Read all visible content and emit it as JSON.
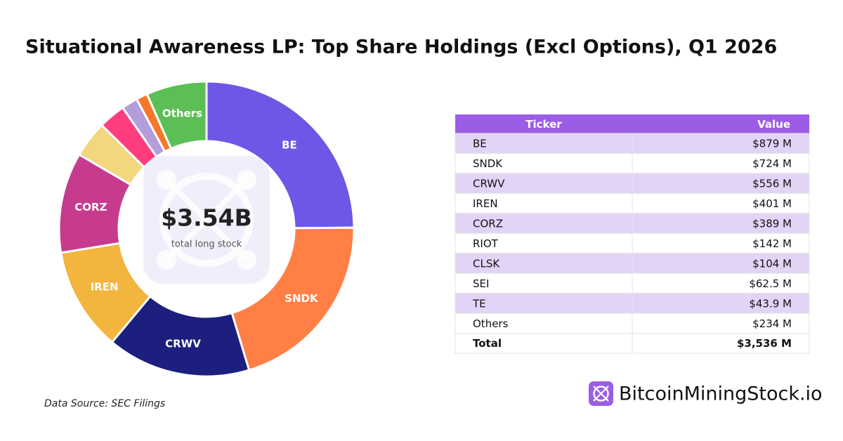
{
  "chart_data": {
    "type": "pie",
    "donut": true,
    "title": "Situational Awareness LP: Top Share Holdings (Excl Options), Q1 2026",
    "categories": [
      "BE",
      "SNDK",
      "CRWV",
      "IREN",
      "CORZ",
      "RIOT",
      "CLSK",
      "SEI",
      "TE",
      "Others"
    ],
    "values": [
      879,
      724,
      556,
      401,
      389,
      142,
      104,
      62.5,
      43.9,
      234
    ],
    "value_labels": [
      "$879 M",
      "$724 M",
      "$556 M",
      "$401 M",
      "$389 M",
      "$142 M",
      "$104 M",
      "$62.5 M",
      "$43.9 M",
      "$234 M"
    ],
    "colors": [
      "#6c57e6",
      "#ff7f45",
      "#1c1f7e",
      "#f2b53d",
      "#c73b8f",
      "#f3d77f",
      "#ff3d7f",
      "#b49ddb",
      "#f5782a",
      "#5cbf55"
    ],
    "label_shown": [
      true,
      true,
      true,
      true,
      true,
      false,
      false,
      false,
      false,
      true
    ],
    "center_label": "$3.54B",
    "center_caption": "total long stock",
    "table": {
      "headers": [
        "Ticker",
        "Value"
      ],
      "total_label": "Total",
      "total": 3536,
      "total_value_label": "$3,536 M"
    },
    "source": "Data Source: SEC Filings",
    "brand": "BitcoinMiningStock.io"
  }
}
